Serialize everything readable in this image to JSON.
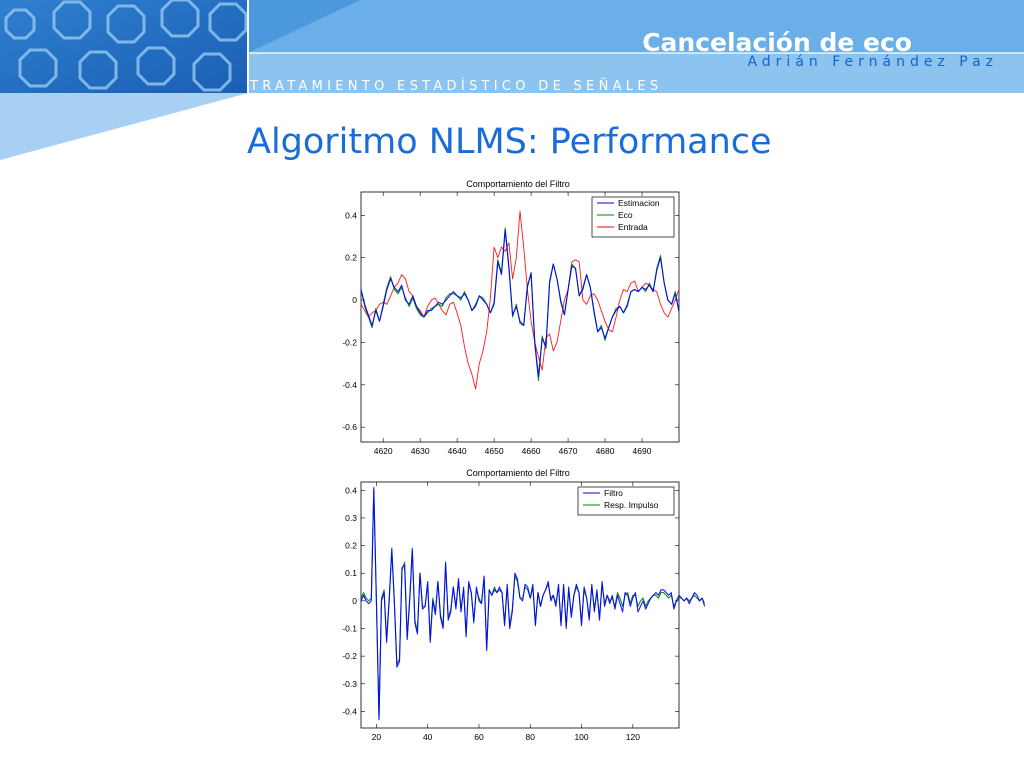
{
  "header": {
    "title": "Cancelación de eco",
    "author": "Adrián Fernández Paz",
    "subject": "TRATAMIENTO ESTADÍSTICO DE SEÑALES"
  },
  "slide": {
    "title": "Algoritmo NLMS: Performance"
  },
  "colors": {
    "banner_light": "#6aafe8",
    "banner_mid": "#3d8fd9",
    "title_blue": "#1a6dd8",
    "series_blue": "#0000ff",
    "series_green": "#008000",
    "series_red": "#ff0000"
  },
  "chart_data": [
    {
      "type": "line",
      "title": "Comportamiento del Filtro",
      "xlim": [
        4614,
        4700
      ],
      "ylim": [
        -0.67,
        0.51
      ],
      "xticks": [
        4620,
        4630,
        4640,
        4650,
        4660,
        4670,
        4680,
        4690
      ],
      "yticks": [
        -0.6,
        -0.4,
        -0.2,
        0,
        0.2,
        0.4
      ],
      "ytick_labels": [
        "-0.6",
        "-0.4",
        "-0.2",
        "0",
        "0.2",
        "0.4"
      ],
      "legend_position": "top-right",
      "x": [
        4614,
        4615,
        4616,
        4617,
        4618,
        4619,
        4620,
        4621,
        4622,
        4623,
        4624,
        4625,
        4626,
        4627,
        4628,
        4629,
        4630,
        4631,
        4632,
        4633,
        4634,
        4635,
        4636,
        4637,
        4638,
        4639,
        4640,
        4641,
        4642,
        4643,
        4644,
        4645,
        4646,
        4647,
        4648,
        4649,
        4650,
        4651,
        4652,
        4653,
        4654,
        4655,
        4656,
        4657,
        4658,
        4659,
        4660,
        4661,
        4662,
        4663,
        4664,
        4665,
        4666,
        4667,
        4668,
        4669,
        4670,
        4671,
        4672,
        4673,
        4674,
        4675,
        4676,
        4677,
        4678,
        4679,
        4680,
        4681,
        4682,
        4683,
        4684,
        4685,
        4686,
        4687,
        4688,
        4689,
        4690,
        4691,
        4692,
        4693,
        4694,
        4695,
        4696,
        4697,
        4698,
        4699,
        4700
      ],
      "series": [
        {
          "name": "Estimacion",
          "color": "#0000ff",
          "values": [
            0.05,
            -0.02,
            -0.07,
            -0.12,
            -0.05,
            -0.1,
            -0.03,
            0.05,
            0.1,
            0.06,
            0.04,
            0.07,
            0.0,
            -0.02,
            0.02,
            -0.03,
            -0.06,
            -0.08,
            -0.05,
            -0.05,
            -0.03,
            -0.01,
            -0.02,
            0.0,
            0.02,
            0.04,
            0.02,
            0.01,
            0.03,
            0.0,
            -0.05,
            -0.03,
            0.02,
            0.0,
            -0.02,
            -0.06,
            -0.02,
            0.18,
            0.12,
            0.33,
            0.15,
            -0.07,
            -0.03,
            -0.1,
            -0.12,
            0.06,
            0.13,
            -0.2,
            -0.36,
            -0.18,
            -0.22,
            0.08,
            0.17,
            0.1,
            0.0,
            -0.07,
            0.05,
            0.16,
            0.15,
            0.02,
            0.05,
            0.12,
            0.06,
            -0.05,
            -0.15,
            -0.13,
            -0.18,
            -0.13,
            -0.08,
            -0.05,
            -0.03,
            -0.06,
            -0.03,
            0.04,
            0.05,
            0.04,
            0.06,
            0.05,
            0.07,
            0.04,
            0.14,
            0.2,
            0.08,
            0.0,
            -0.02,
            0.03,
            -0.05
          ]
        },
        {
          "name": "Eco",
          "color": "#008000",
          "values": [
            0.05,
            -0.03,
            -0.08,
            -0.13,
            -0.04,
            -0.1,
            -0.02,
            0.06,
            0.11,
            0.05,
            0.03,
            0.06,
            0.01,
            -0.03,
            0.01,
            -0.04,
            -0.07,
            -0.08,
            -0.06,
            -0.04,
            -0.03,
            -0.02,
            -0.03,
            0.01,
            0.03,
            0.03,
            0.02,
            0.0,
            0.04,
            0.0,
            -0.05,
            -0.02,
            0.02,
            0.01,
            -0.02,
            -0.06,
            -0.01,
            0.19,
            0.13,
            0.34,
            0.16,
            -0.08,
            -0.02,
            -0.11,
            -0.12,
            0.07,
            0.12,
            -0.21,
            -0.38,
            -0.17,
            -0.23,
            0.09,
            0.17,
            0.1,
            -0.01,
            -0.07,
            0.05,
            0.17,
            0.15,
            0.02,
            0.06,
            0.12,
            0.06,
            -0.06,
            -0.15,
            -0.12,
            -0.19,
            -0.13,
            -0.08,
            -0.04,
            -0.03,
            -0.06,
            -0.02,
            0.04,
            0.05,
            0.04,
            0.06,
            0.04,
            0.08,
            0.04,
            0.15,
            0.21,
            0.08,
            0.0,
            -0.02,
            0.04,
            -0.06
          ]
        },
        {
          "name": "Entrada",
          "color": "#ff0000",
          "values": [
            -0.02,
            -0.05,
            -0.08,
            -0.06,
            -0.05,
            -0.02,
            -0.01,
            -0.02,
            0.02,
            0.06,
            0.08,
            0.12,
            0.1,
            0.04,
            0.02,
            -0.03,
            -0.05,
            -0.08,
            -0.03,
            0.0,
            0.01,
            -0.02,
            -0.05,
            -0.07,
            -0.02,
            -0.01,
            -0.06,
            -0.12,
            -0.22,
            -0.3,
            -0.35,
            -0.42,
            -0.3,
            -0.24,
            -0.15,
            0.01,
            0.25,
            0.2,
            0.25,
            0.23,
            0.27,
            0.1,
            0.2,
            0.42,
            0.25,
            0.05,
            -0.1,
            -0.2,
            -0.27,
            -0.33,
            -0.18,
            -0.16,
            -0.24,
            -0.2,
            -0.1,
            0.0,
            0.05,
            0.18,
            0.19,
            0.18,
            0.0,
            -0.02,
            0.02,
            0.03,
            0.0,
            -0.05,
            -0.1,
            -0.14,
            -0.15,
            -0.08,
            0.0,
            0.05,
            0.04,
            0.08,
            0.09,
            0.04,
            0.06,
            0.08,
            0.07,
            0.05,
            0.04,
            -0.02,
            -0.06,
            -0.08,
            -0.04,
            0.0,
            0.05
          ]
        }
      ]
    },
    {
      "type": "line",
      "title": "Comportamiento del Filtro",
      "xlim": [
        14,
        138
      ],
      "ylim": [
        -0.46,
        0.43
      ],
      "xticks": [
        20,
        40,
        60,
        80,
        100,
        120
      ],
      "yticks": [
        -0.4,
        -0.3,
        -0.2,
        -0.1,
        0,
        0.1,
        0.2,
        0.3,
        0.4
      ],
      "ytick_labels": [
        "-0.4",
        "-0.3",
        "-0.2",
        "-0.1",
        "0",
        "0.1",
        "0.2",
        "0.3",
        "0.4"
      ],
      "legend_position": "top-right",
      "x_start": 14,
      "series": [
        {
          "name": "Filtro",
          "color": "#0000ff",
          "values": [
            0.0,
            0.02,
            0.0,
            -0.01,
            0.0,
            0.41,
            0.0,
            -0.43,
            0.0,
            0.03,
            -0.15,
            0.0,
            0.19,
            0.0,
            -0.24,
            -0.22,
            0.12,
            0.13,
            -0.14,
            0.0,
            0.19,
            -0.08,
            -0.12,
            0.1,
            -0.03,
            -0.02,
            0.07,
            -0.15,
            0.0,
            -0.05,
            0.07,
            -0.06,
            -0.1,
            0.14,
            -0.07,
            -0.04,
            0.05,
            -0.03,
            0.08,
            -0.04,
            0.05,
            -0.13,
            0.07,
            0.03,
            -0.08,
            0.05,
            0.0,
            -0.01,
            0.09,
            -0.18,
            0.04,
            0.02,
            0.04,
            0.03,
            0.05,
            0.03,
            -0.09,
            0.06,
            -0.1,
            -0.04,
            0.1,
            0.08,
            0.01,
            0.0,
            0.06,
            0.05,
            0.01,
            0.06,
            -0.09,
            0.03,
            -0.02,
            0.02,
            0.04,
            0.07,
            0.0,
            0.02,
            -0.02,
            0.06,
            -0.09,
            0.06,
            -0.1,
            0.05,
            -0.06,
            0.02,
            0.06,
            0.03,
            -0.09,
            0.05,
            0.01,
            -0.07,
            0.06,
            -0.04,
            0.04,
            -0.07,
            0.07,
            -0.02,
            0.02,
            -0.01,
            0.02,
            -0.03,
            0.02,
            -0.01,
            -0.04,
            0.03,
            0.02,
            -0.02,
            0.01,
            0.03,
            -0.04,
            -0.02,
            0.0,
            -0.03,
            -0.01,
            0.01,
            0.02,
            0.03,
            0.02,
            0.04,
            0.04,
            0.03,
            0.02,
            0.03,
            -0.03,
            0.0,
            0.02,
            0.01,
            0.0,
            0.01,
            -0.01,
            0.01,
            0.03,
            0.02,
            0.0,
            0.01,
            -0.02
          ]
        },
        {
          "name": "Resp. Impulso",
          "color": "#008000",
          "values": [
            0.01,
            0.03,
            0.01,
            0.0,
            0.01,
            0.4,
            0.0,
            -0.42,
            0.01,
            0.04,
            -0.14,
            0.01,
            0.18,
            0.0,
            -0.23,
            -0.21,
            0.11,
            0.14,
            -0.13,
            0.01,
            0.18,
            -0.07,
            -0.11,
            0.1,
            -0.02,
            -0.02,
            0.06,
            -0.14,
            0.01,
            -0.04,
            0.07,
            -0.05,
            -0.09,
            0.13,
            -0.06,
            -0.03,
            0.05,
            -0.02,
            0.07,
            -0.03,
            0.04,
            -0.12,
            0.06,
            0.03,
            -0.07,
            0.04,
            0.01,
            -0.01,
            0.08,
            -0.17,
            0.04,
            0.02,
            0.05,
            0.03,
            0.04,
            0.03,
            -0.08,
            0.05,
            -0.09,
            -0.03,
            0.09,
            0.07,
            0.01,
            0.01,
            0.05,
            0.04,
            0.01,
            0.05,
            -0.08,
            0.03,
            -0.02,
            0.02,
            0.04,
            0.06,
            0.01,
            0.02,
            -0.01,
            0.05,
            -0.08,
            0.05,
            -0.09,
            0.04,
            -0.05,
            0.02,
            0.05,
            0.03,
            -0.08,
            0.04,
            0.01,
            -0.06,
            0.05,
            -0.03,
            0.03,
            -0.06,
            0.06,
            -0.01,
            0.02,
            0.0,
            0.01,
            -0.02,
            0.03,
            0.01,
            -0.02,
            0.02,
            0.03,
            -0.01,
            0.02,
            0.02,
            -0.02,
            0.0,
            0.01,
            -0.02,
            0.0,
            0.01,
            0.02,
            0.02,
            0.01,
            0.03,
            0.03,
            0.02,
            0.01,
            0.02,
            -0.02,
            0.0,
            0.01,
            0.01,
            0.0,
            0.01,
            0.0,
            0.01,
            0.02,
            0.01,
            0.0,
            0.01,
            -0.01
          ]
        }
      ]
    }
  ]
}
